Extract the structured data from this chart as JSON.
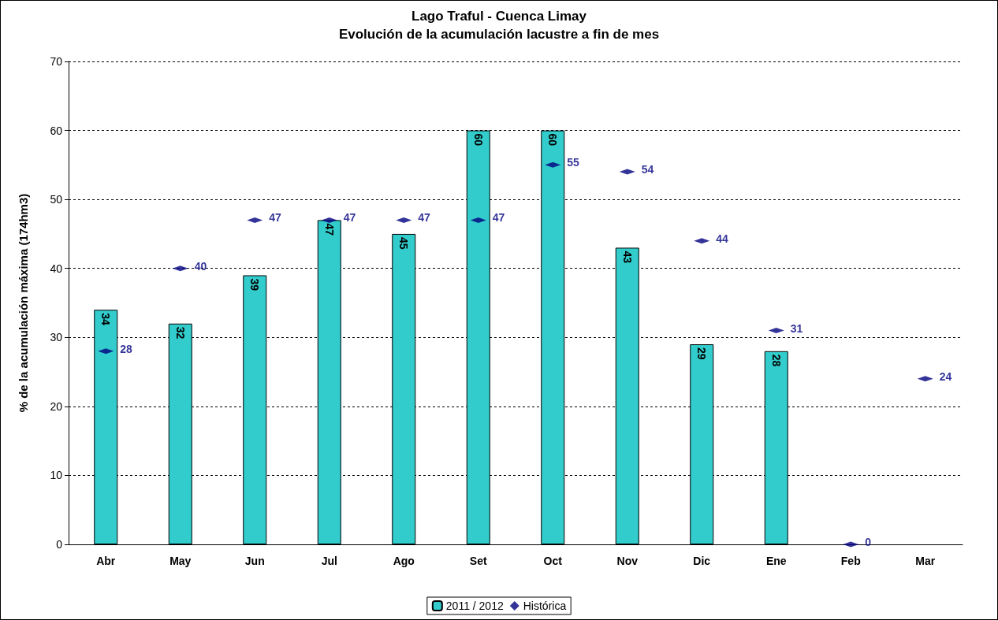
{
  "chart_data": {
    "type": "bar",
    "title": "Lago Traful - Cuenca Limay",
    "subtitle": "Evolución de la acumulación lacustre a fin de mes",
    "ylabel": "% de la acumulación máxima (174hm3)",
    "categories": [
      "Abr",
      "May",
      "Jun",
      "Jul",
      "Ago",
      "Set",
      "Oct",
      "Nov",
      "Dic",
      "Ene",
      "Feb",
      "Mar"
    ],
    "series": [
      {
        "name": "2011 / 2012",
        "type": "bar",
        "color": "#33cccc",
        "values": [
          34,
          32,
          39,
          47,
          45,
          60,
          60,
          43,
          29,
          28,
          null,
          null
        ]
      },
      {
        "name": "Histórica",
        "type": "scatter",
        "marker": "diamond",
        "color": "#000080",
        "x": [
          "Abr",
          "May",
          "Jun",
          "Jul",
          "Ago",
          "Set",
          "Oct",
          "Nov",
          "Dic",
          "Ene",
          "Feb",
          "Mar"
        ],
        "values": [
          28,
          40,
          47,
          47,
          47,
          47,
          55,
          54,
          44,
          31,
          0,
          24
        ]
      }
    ],
    "ylim": [
      0,
      70
    ],
    "yticks": [
      0,
      10,
      20,
      30,
      40,
      50,
      60,
      70
    ],
    "grid": "y",
    "legend": "bottom",
    "data_labels": true
  }
}
